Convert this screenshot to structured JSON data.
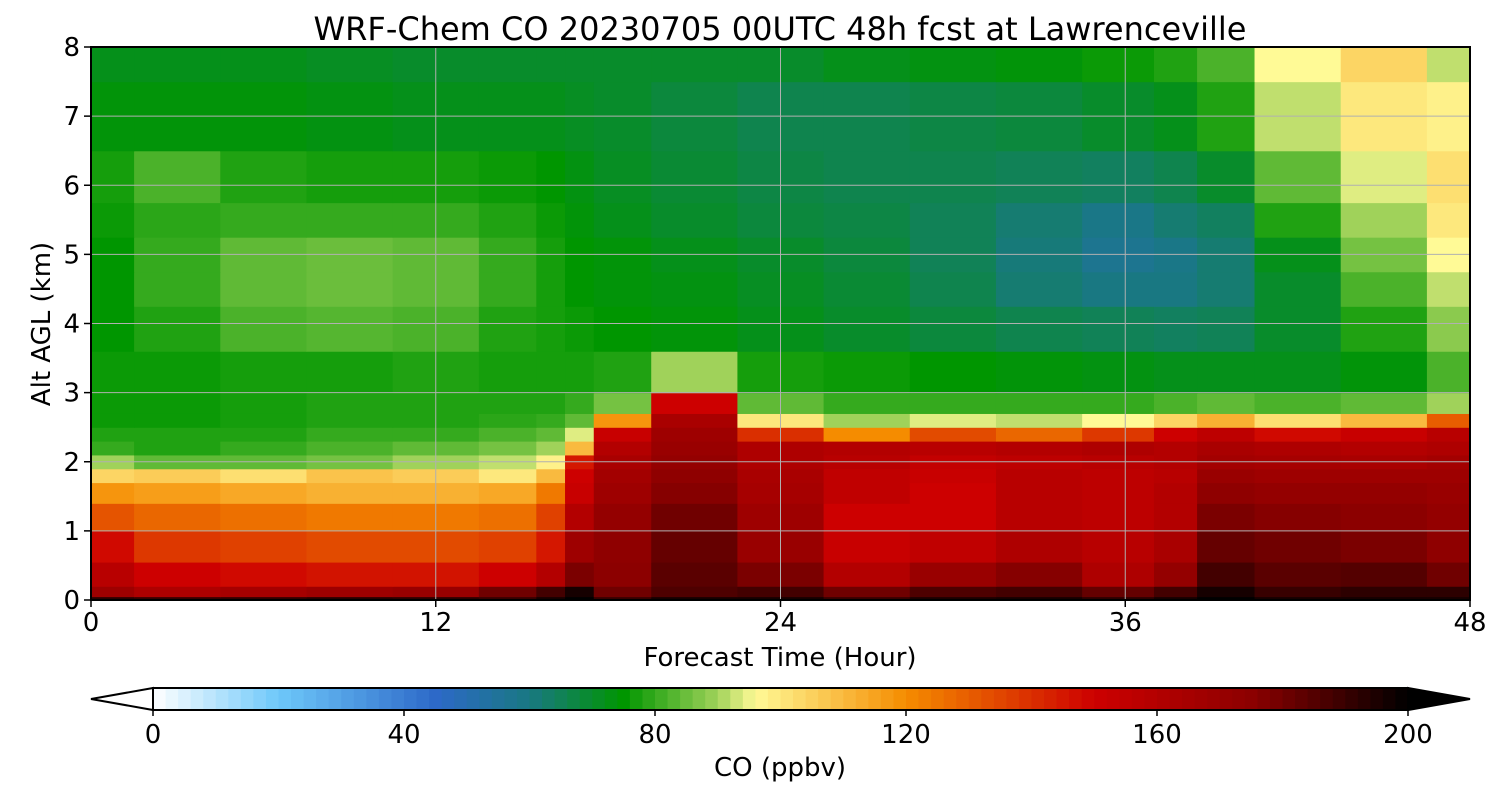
{
  "chart_data": {
    "type": "heatmap",
    "title": "WRF-Chem CO  20230705 00UTC 48h fcst at Lawrenceville",
    "xlabel": "Forecast Time (Hour)",
    "ylabel": "Alt AGL (km)",
    "xlim": [
      0,
      48
    ],
    "ylim": [
      0,
      8
    ],
    "xticks": [
      0,
      12,
      24,
      36,
      48
    ],
    "yticks": [
      0,
      1,
      2,
      3,
      4,
      5,
      6,
      7,
      8
    ],
    "grid": true,
    "x": [
      0,
      3,
      6,
      9,
      12,
      15,
      16,
      17,
      18,
      21,
      24,
      27,
      30,
      33,
      36,
      38,
      39,
      42,
      45,
      48
    ],
    "y": [
      0,
      0.1,
      0.3,
      0.8,
      1.2,
      1.6,
      1.8,
      2.0,
      2.2,
      2.4,
      2.6,
      2.8,
      3.2,
      4.0,
      4.5,
      5.0,
      5.5,
      6.0,
      7.0,
      8.0
    ],
    "z": [
      [
        192,
        190,
        191,
        193,
        192,
        190,
        196,
        200,
        190,
        196,
        196,
        190,
        195,
        196,
        192,
        196,
        200,
        196,
        196,
        196
      ],
      [
        168,
        162,
        165,
        168,
        170,
        180,
        188,
        196,
        180,
        186,
        188,
        180,
        186,
        188,
        182,
        188,
        196,
        190,
        192,
        192
      ],
      [
        158,
        150,
        148,
        146,
        146,
        150,
        160,
        178,
        175,
        184,
        178,
        160,
        170,
        176,
        162,
        172,
        188,
        184,
        185,
        180
      ],
      [
        148,
        138,
        136,
        134,
        134,
        136,
        145,
        168,
        174,
        182,
        170,
        152,
        155,
        162,
        158,
        164,
        182,
        180,
        178,
        174
      ],
      [
        132,
        128,
        126,
        124,
        124,
        126,
        136,
        160,
        172,
        180,
        168,
        150,
        150,
        158,
        156,
        160,
        178,
        176,
        175,
        172
      ],
      [
        118,
        116,
        114,
        112,
        112,
        114,
        124,
        152,
        168,
        176,
        165,
        155,
        150,
        158,
        156,
        160,
        174,
        172,
        172,
        170
      ],
      [
        104,
        106,
        102,
        108,
        106,
        100,
        110,
        150,
        166,
        174,
        164,
        155,
        152,
        158,
        156,
        158,
        170,
        168,
        168,
        168
      ],
      [
        90,
        84,
        84,
        86,
        90,
        92,
        98,
        145,
        164,
        172,
        162,
        158,
        154,
        156,
        158,
        160,
        166,
        165,
        164,
        166
      ],
      [
        80,
        78,
        80,
        82,
        84,
        86,
        90,
        110,
        160,
        170,
        162,
        160,
        158,
        160,
        162,
        160,
        164,
        162,
        160,
        162
      ],
      [
        78,
        78,
        78,
        80,
        80,
        82,
        84,
        94,
        152,
        168,
        140,
        120,
        134,
        128,
        138,
        150,
        156,
        148,
        152,
        158
      ],
      [
        76,
        76,
        77,
        78,
        78,
        79,
        80,
        84,
        118,
        164,
        100,
        90,
        94,
        92,
        96,
        104,
        112,
        102,
        110,
        130
      ],
      [
        76,
        76,
        77,
        78,
        78,
        78,
        78,
        80,
        86,
        150,
        84,
        80,
        80,
        80,
        80,
        82,
        84,
        82,
        84,
        90
      ],
      [
        76,
        76,
        77,
        77,
        78,
        77,
        77,
        77,
        78,
        90,
        77,
        76,
        75,
        74,
        73,
        72,
        72,
        72,
        74,
        82
      ],
      [
        75,
        78,
        82,
        83,
        82,
        78,
        77,
        76,
        75,
        74,
        72,
        70,
        68,
        66,
        65,
        64,
        65,
        70,
        78,
        88
      ],
      [
        75,
        80,
        84,
        85,
        84,
        80,
        77,
        75,
        74,
        73,
        71,
        69,
        66,
        62,
        60,
        60,
        62,
        70,
        82,
        92
      ],
      [
        75,
        80,
        84,
        85,
        84,
        80,
        77,
        75,
        74,
        72,
        70,
        68,
        65,
        61,
        57,
        59,
        62,
        72,
        86,
        96
      ],
      [
        76,
        79,
        80,
        80,
        80,
        78,
        76,
        74,
        72,
        70,
        68,
        67,
        65,
        62,
        59,
        62,
        64,
        78,
        90,
        100
      ],
      [
        77,
        82,
        78,
        77,
        77,
        76,
        75,
        73,
        71,
        69,
        67,
        66,
        66,
        65,
        64,
        66,
        70,
        84,
        94,
        102
      ],
      [
        74,
        74,
        74,
        73,
        72,
        72,
        72,
        71,
        70,
        68,
        66,
        66,
        67,
        68,
        70,
        72,
        78,
        92,
        100,
        98
      ],
      [
        72,
        72,
        72,
        71,
        70,
        70,
        70,
        70,
        70,
        70,
        70,
        72,
        73,
        74,
        76,
        78,
        82,
        96,
        104,
        92
      ]
    ],
    "colorbar": {
      "label": "CO  (ppbv)",
      "min": 0,
      "max": 200,
      "ticks": [
        0,
        40,
        80,
        120,
        160,
        200
      ],
      "extend": "both",
      "orientation": "horizontal"
    }
  }
}
